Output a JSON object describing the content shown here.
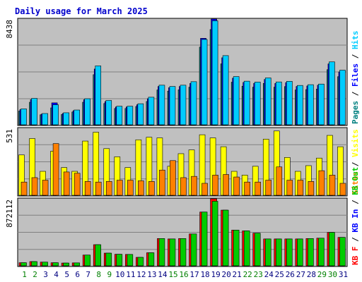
{
  "title": "Daily usage for March 2025",
  "colors": {
    "background": "#ffffff",
    "panel": "#c0c0c0",
    "title": "#0000cc",
    "hits": "#00ccff",
    "files": "#0000ff",
    "pages": "#008080",
    "visits": "#ffff00",
    "sites": "#ff8000",
    "kb_in": "#00cc00",
    "kb_out": "#ff0000",
    "weekend_label": "#008000",
    "weekday_label": "#000080"
  },
  "legend": {
    "top": [
      "Pages",
      "Files",
      "Hits"
    ],
    "middle": [
      "Sites",
      "Visits"
    ],
    "bottom": [
      "KB F",
      "KB In",
      "KB Out"
    ],
    "separator": " / "
  },
  "chart_data": [
    {
      "type": "bar",
      "title": "Daily usage for March 2025",
      "panel": "top",
      "categories": [
        "1",
        "2",
        "3",
        "4",
        "5",
        "6",
        "7",
        "8",
        "9",
        "10",
        "11",
        "12",
        "13",
        "14",
        "15",
        "16",
        "17",
        "18",
        "19",
        "20",
        "21",
        "22",
        "23",
        "24",
        "25",
        "26",
        "27",
        "28",
        "29",
        "30",
        "31"
      ],
      "ymax_label": "8438",
      "ylim": [
        0,
        8438
      ],
      "series": [
        {
          "name": "Hits",
          "values": [
            1270,
            2110,
            900,
            1600,
            960,
            1180,
            2080,
            4700,
            1940,
            1480,
            1480,
            1680,
            2200,
            3160,
            3060,
            3160,
            3440,
            6810,
            8300,
            5520,
            3850,
            3480,
            3410,
            3740,
            3420,
            3470,
            3140,
            3200,
            3250,
            5020,
            4360
          ]
        },
        {
          "name": "Files",
          "values": [
            1210,
            2010,
            850,
            1750,
            900,
            1120,
            2000,
            4450,
            1850,
            1420,
            1420,
            1600,
            2080,
            3060,
            2960,
            3060,
            3300,
            6900,
            8438,
            5350,
            3720,
            3380,
            3310,
            3620,
            3300,
            3370,
            3060,
            3100,
            3160,
            4860,
            4220
          ]
        },
        {
          "name": "Pages",
          "values": [
            1100,
            1800,
            800,
            1350,
            820,
            1020,
            1800,
            4000,
            1700,
            1300,
            1300,
            1460,
            1860,
            2780,
            2690,
            2790,
            3000,
            6200,
            7600,
            4860,
            3400,
            3080,
            3000,
            3300,
            3000,
            3050,
            2780,
            2810,
            2850,
            4400,
            3840
          ]
        }
      ]
    },
    {
      "type": "bar",
      "panel": "middle",
      "categories": [
        "1",
        "2",
        "3",
        "4",
        "5",
        "6",
        "7",
        "8",
        "9",
        "10",
        "11",
        "12",
        "13",
        "14",
        "15",
        "16",
        "17",
        "18",
        "19",
        "20",
        "21",
        "22",
        "23",
        "24",
        "25",
        "26",
        "27",
        "28",
        "29",
        "30",
        "31"
      ],
      "ymax_label": "531",
      "ylim": [
        0,
        531
      ],
      "series": [
        {
          "name": "Visits",
          "values": [
            320,
            450,
            190,
            350,
            220,
            190,
            430,
            500,
            370,
            305,
            220,
            440,
            460,
            455,
            230,
            330,
            360,
            480,
            455,
            385,
            190,
            160,
            230,
            445,
            510,
            300,
            190,
            235,
            295,
            475,
            385
          ]
        },
        {
          "name": "Sites",
          "values": [
            105,
            140,
            120,
            410,
            185,
            175,
            110,
            105,
            110,
            120,
            120,
            115,
            110,
            200,
            275,
            140,
            150,
            95,
            160,
            165,
            145,
            105,
            105,
            120,
            225,
            120,
            120,
            110,
            195,
            160,
            95
          ]
        }
      ]
    },
    {
      "type": "bar",
      "panel": "bottom",
      "categories": [
        "1",
        "2",
        "3",
        "4",
        "5",
        "6",
        "7",
        "8",
        "9",
        "10",
        "11",
        "12",
        "13",
        "14",
        "15",
        "16",
        "17",
        "18",
        "19",
        "20",
        "21",
        "22",
        "23",
        "24",
        "25",
        "26",
        "27",
        "28",
        "29",
        "30",
        "31"
      ],
      "ymax_label": "872112",
      "ylim": [
        0,
        872112
      ],
      "series": [
        {
          "name": "KB In",
          "values": [
            40000,
            55000,
            48000,
            40000,
            36000,
            38000,
            140000,
            275000,
            165000,
            150000,
            148000,
            110000,
            170000,
            355000,
            350000,
            355000,
            415000,
            700000,
            840000,
            725000,
            465000,
            455000,
            425000,
            350000,
            350000,
            350000,
            350000,
            355000,
            360000,
            435000,
            370000
          ]
        },
        {
          "name": "KB Out",
          "values": [
            40000,
            55000,
            48000,
            40000,
            36000,
            38000,
            140000,
            275000,
            165000,
            150000,
            148000,
            110000,
            170000,
            355000,
            350000,
            355000,
            415000,
            700000,
            872112,
            725000,
            465000,
            455000,
            425000,
            350000,
            350000,
            350000,
            350000,
            355000,
            360000,
            435000,
            370000
          ]
        }
      ]
    }
  ]
}
